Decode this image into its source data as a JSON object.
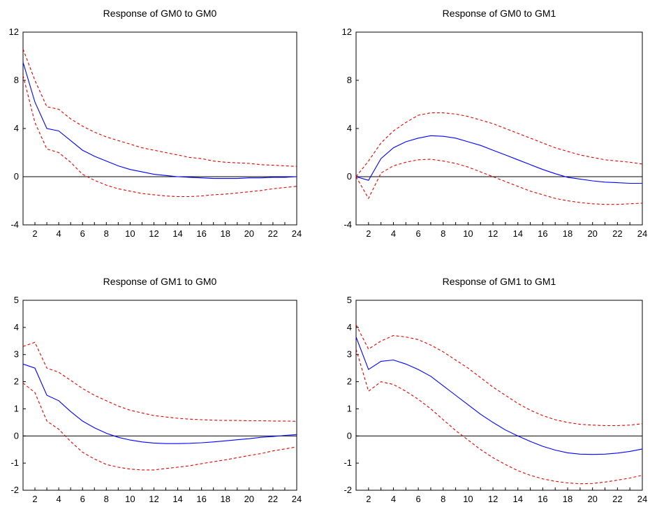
{
  "chart_data": [
    {
      "type": "line",
      "title": "Response of GM0 to GM0",
      "xlabel": "",
      "ylabel": "",
      "x": [
        1,
        2,
        3,
        4,
        5,
        6,
        7,
        8,
        9,
        10,
        11,
        12,
        13,
        14,
        15,
        16,
        17,
        18,
        19,
        20,
        21,
        22,
        23,
        24
      ],
      "xticks": [
        2,
        4,
        6,
        8,
        10,
        12,
        14,
        16,
        18,
        20,
        22,
        24
      ],
      "xlim": [
        1,
        24
      ],
      "ylim": [
        -4,
        12
      ],
      "yticks": [
        -4,
        0,
        4,
        8,
        12
      ],
      "zero_line": true,
      "series": [
        {
          "role": "upper",
          "color": "#e00000",
          "style": "dashed",
          "values": [
            10.6,
            8.0,
            5.8,
            5.6,
            4.8,
            4.2,
            3.7,
            3.3,
            3.0,
            2.7,
            2.4,
            2.2,
            2.0,
            1.8,
            1.6,
            1.5,
            1.3,
            1.2,
            1.15,
            1.1,
            1.0,
            0.95,
            0.9,
            0.85
          ]
        },
        {
          "role": "response",
          "color": "#0000ff",
          "style": "solid",
          "values": [
            9.5,
            6.2,
            4.0,
            3.8,
            3.0,
            2.2,
            1.7,
            1.3,
            0.9,
            0.6,
            0.4,
            0.2,
            0.1,
            0.0,
            -0.05,
            -0.1,
            -0.15,
            -0.15,
            -0.15,
            -0.1,
            -0.1,
            -0.05,
            -0.05,
            0.0
          ]
        },
        {
          "role": "lower",
          "color": "#e00000",
          "style": "dashed",
          "values": [
            8.4,
            4.5,
            2.3,
            2.0,
            1.2,
            0.2,
            -0.3,
            -0.7,
            -1.0,
            -1.2,
            -1.4,
            -1.5,
            -1.6,
            -1.65,
            -1.65,
            -1.6,
            -1.5,
            -1.45,
            -1.35,
            -1.25,
            -1.15,
            -1.0,
            -0.9,
            -0.8
          ]
        }
      ]
    },
    {
      "type": "line",
      "title": "Response of GM0 to GM1",
      "xlabel": "",
      "ylabel": "",
      "x": [
        1,
        2,
        3,
        4,
        5,
        6,
        7,
        8,
        9,
        10,
        11,
        12,
        13,
        14,
        15,
        16,
        17,
        18,
        19,
        20,
        21,
        22,
        23,
        24
      ],
      "xticks": [
        2,
        4,
        6,
        8,
        10,
        12,
        14,
        16,
        18,
        20,
        22,
        24
      ],
      "xlim": [
        1,
        24
      ],
      "ylim": [
        -4,
        12
      ],
      "yticks": [
        -4,
        0,
        4,
        8,
        12
      ],
      "zero_line": true,
      "series": [
        {
          "role": "upper",
          "color": "#e00000",
          "style": "dashed",
          "values": [
            0.0,
            1.3,
            2.8,
            3.8,
            4.5,
            5.1,
            5.3,
            5.3,
            5.2,
            5.0,
            4.7,
            4.4,
            4.0,
            3.6,
            3.2,
            2.8,
            2.4,
            2.1,
            1.8,
            1.6,
            1.4,
            1.3,
            1.2,
            1.05
          ]
        },
        {
          "role": "response",
          "color": "#0000ff",
          "style": "solid",
          "values": [
            0.0,
            -0.3,
            1.5,
            2.4,
            2.9,
            3.2,
            3.4,
            3.35,
            3.2,
            2.9,
            2.6,
            2.2,
            1.8,
            1.4,
            1.0,
            0.6,
            0.25,
            -0.05,
            -0.2,
            -0.35,
            -0.45,
            -0.5,
            -0.55,
            -0.55
          ]
        },
        {
          "role": "lower",
          "color": "#e00000",
          "style": "dashed",
          "values": [
            0.0,
            -1.8,
            0.3,
            0.9,
            1.2,
            1.4,
            1.45,
            1.3,
            1.1,
            0.8,
            0.4,
            0.0,
            -0.4,
            -0.8,
            -1.2,
            -1.5,
            -1.8,
            -2.0,
            -2.15,
            -2.25,
            -2.3,
            -2.3,
            -2.25,
            -2.2
          ]
        }
      ]
    },
    {
      "type": "line",
      "title": "Response of GM1 to GM0",
      "xlabel": "",
      "ylabel": "",
      "x": [
        1,
        2,
        3,
        4,
        5,
        6,
        7,
        8,
        9,
        10,
        11,
        12,
        13,
        14,
        15,
        16,
        17,
        18,
        19,
        20,
        21,
        22,
        23,
        24
      ],
      "xticks": [
        2,
        4,
        6,
        8,
        10,
        12,
        14,
        16,
        18,
        20,
        22,
        24
      ],
      "xlim": [
        1,
        24
      ],
      "ylim": [
        -2,
        5
      ],
      "yticks": [
        -2,
        -1,
        0,
        1,
        2,
        3,
        4,
        5
      ],
      "zero_line": true,
      "series": [
        {
          "role": "upper",
          "color": "#e00000",
          "style": "dashed",
          "values": [
            3.3,
            3.45,
            2.5,
            2.35,
            2.05,
            1.75,
            1.5,
            1.3,
            1.1,
            0.95,
            0.85,
            0.75,
            0.7,
            0.65,
            0.62,
            0.6,
            0.58,
            0.57,
            0.57,
            0.56,
            0.56,
            0.55,
            0.55,
            0.54
          ]
        },
        {
          "role": "response",
          "color": "#0000ff",
          "style": "solid",
          "values": [
            2.65,
            2.5,
            1.5,
            1.3,
            0.9,
            0.55,
            0.3,
            0.1,
            -0.05,
            -0.15,
            -0.22,
            -0.26,
            -0.28,
            -0.28,
            -0.27,
            -0.25,
            -0.22,
            -0.18,
            -0.14,
            -0.1,
            -0.05,
            -0.02,
            0.02,
            0.05
          ]
        },
        {
          "role": "lower",
          "color": "#e00000",
          "style": "dashed",
          "values": [
            1.95,
            1.6,
            0.55,
            0.25,
            -0.2,
            -0.6,
            -0.85,
            -1.05,
            -1.15,
            -1.22,
            -1.25,
            -1.25,
            -1.2,
            -1.15,
            -1.1,
            -1.02,
            -0.95,
            -0.88,
            -0.8,
            -0.72,
            -0.65,
            -0.55,
            -0.48,
            -0.4
          ]
        }
      ]
    },
    {
      "type": "line",
      "title": "Response of GM1 to GM1",
      "xlabel": "",
      "ylabel": "",
      "x": [
        1,
        2,
        3,
        4,
        5,
        6,
        7,
        8,
        9,
        10,
        11,
        12,
        13,
        14,
        15,
        16,
        17,
        18,
        19,
        20,
        21,
        22,
        23,
        24
      ],
      "xticks": [
        2,
        4,
        6,
        8,
        10,
        12,
        14,
        16,
        18,
        20,
        22,
        24
      ],
      "xlim": [
        1,
        24
      ],
      "ylim": [
        -2,
        5
      ],
      "yticks": [
        -2,
        -1,
        0,
        1,
        2,
        3,
        4,
        5
      ],
      "zero_line": true,
      "series": [
        {
          "role": "upper",
          "color": "#e00000",
          "style": "dashed",
          "values": [
            4.1,
            3.2,
            3.5,
            3.7,
            3.65,
            3.55,
            3.35,
            3.1,
            2.8,
            2.5,
            2.15,
            1.8,
            1.5,
            1.2,
            0.95,
            0.75,
            0.6,
            0.5,
            0.43,
            0.4,
            0.38,
            0.38,
            0.4,
            0.45
          ]
        },
        {
          "role": "response",
          "color": "#0000ff",
          "style": "solid",
          "values": [
            3.65,
            2.45,
            2.75,
            2.8,
            2.65,
            2.45,
            2.2,
            1.85,
            1.5,
            1.15,
            0.8,
            0.5,
            0.22,
            0.0,
            -0.2,
            -0.38,
            -0.52,
            -0.62,
            -0.67,
            -0.68,
            -0.67,
            -0.63,
            -0.57,
            -0.48
          ]
        },
        {
          "role": "lower",
          "color": "#e00000",
          "style": "dashed",
          "values": [
            3.2,
            1.65,
            2.0,
            1.9,
            1.65,
            1.35,
            1.0,
            0.6,
            0.2,
            -0.15,
            -0.5,
            -0.8,
            -1.05,
            -1.28,
            -1.45,
            -1.58,
            -1.67,
            -1.73,
            -1.76,
            -1.75,
            -1.7,
            -1.63,
            -1.55,
            -1.45
          ]
        }
      ]
    }
  ]
}
